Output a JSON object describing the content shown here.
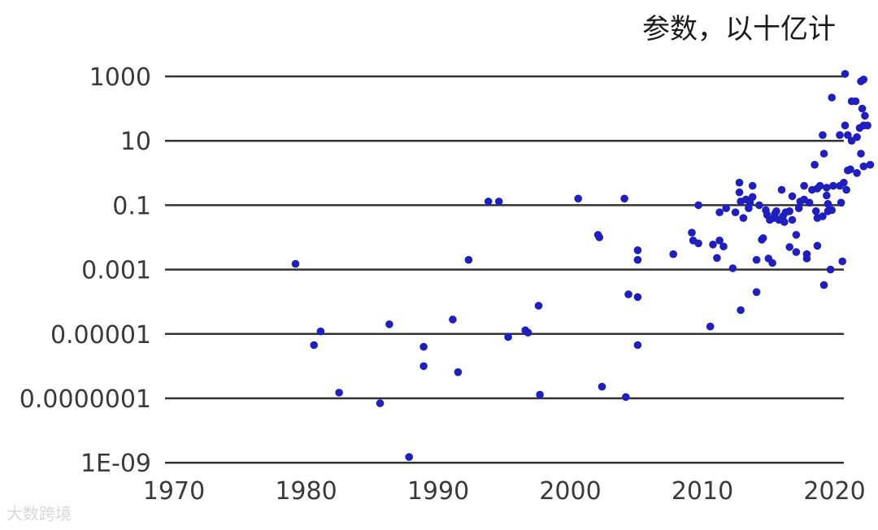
{
  "chart_data": {
    "type": "scatter",
    "title": "参数，以十亿计",
    "yscale": "log",
    "ylim": [
      1e-09,
      1000
    ],
    "xlim": [
      1970,
      2022
    ],
    "y_ticks": [
      1000,
      10,
      0.1,
      0.001,
      1e-05,
      1e-07,
      1e-09
    ],
    "y_tick_labels": [
      "1000",
      "10",
      "0.1",
      "0.001",
      "0.00001",
      "0.0000001",
      "1E-09"
    ],
    "x_ticks": [
      1970,
      1980,
      1990,
      2000,
      2010,
      2020
    ],
    "x_tick_labels": [
      "1970",
      "1980",
      "1990",
      "2000",
      "2010",
      "2020"
    ],
    "grid": "horizontal",
    "point_color": "#1f1fbf",
    "points": [
      [
        1979.2,
        0.0015
      ],
      [
        1980.6,
        4.5e-06
      ],
      [
        1981.1,
        1.2e-05
      ],
      [
        1982.5,
        1.5e-07
      ],
      [
        1985.6,
        7e-08
      ],
      [
        1986.3,
        2e-05
      ],
      [
        1987.8,
        1.5e-09
      ],
      [
        1988.9,
        1e-06
      ],
      [
        1988.9,
        4e-06
      ],
      [
        1991.1,
        2.8e-05
      ],
      [
        1991.5,
        6.5e-07
      ],
      [
        1992.3,
        0.002
      ],
      [
        1993.8,
        0.13
      ],
      [
        1994.6,
        0.13
      ],
      [
        1995.3,
        8e-06
      ],
      [
        1996.6,
        1.3e-05
      ],
      [
        1996.8,
        1.1e-05
      ],
      [
        1997.6,
        7.5e-05
      ],
      [
        1997.7,
        1.3e-07
      ],
      [
        2000.6,
        0.16
      ],
      [
        2002.1,
        0.012
      ],
      [
        2002.2,
        0.01
      ],
      [
        2002.4,
        2.3e-07
      ],
      [
        2004.1,
        0.16
      ],
      [
        2004.2,
        1.1e-07
      ],
      [
        2004.4,
        0.00017
      ],
      [
        2005.1,
        0.00014
      ],
      [
        2005.1,
        4.5e-06
      ],
      [
        2005.1,
        0.004
      ],
      [
        2005.1,
        0.002
      ],
      [
        2007.8,
        0.003
      ],
      [
        2009.2,
        0.014
      ],
      [
        2009.3,
        0.008
      ],
      [
        2009.7,
        0.1
      ],
      [
        2009.7,
        0.0065
      ],
      [
        2010.6,
        1.7e-05
      ],
      [
        2010.8,
        0.006
      ],
      [
        2011.1,
        0.0023
      ],
      [
        2011.3,
        0.008
      ],
      [
        2011.3,
        0.06
      ],
      [
        2011.6,
        0.0052
      ],
      [
        2011.8,
        0.08
      ],
      [
        2012.3,
        0.0011
      ],
      [
        2012.5,
        0.06
      ],
      [
        2012.8,
        0.5
      ],
      [
        2012.8,
        0.25
      ],
      [
        2012.9,
        5.5e-05
      ],
      [
        2012.9,
        0.13
      ],
      [
        2013.1,
        0.04
      ],
      [
        2013.3,
        0.15
      ],
      [
        2013.5,
        0.08
      ],
      [
        2013.6,
        0.12
      ],
      [
        2013.8,
        0.18
      ],
      [
        2013.8,
        0.4
      ],
      [
        2014.1,
        0.0002
      ],
      [
        2014.1,
        0.002
      ],
      [
        2014.3,
        0.1
      ],
      [
        2014.5,
        0.0085
      ],
      [
        2014.6,
        0.0095
      ],
      [
        2014.8,
        0.07
      ],
      [
        2014.9,
        0.05
      ],
      [
        2015.0,
        0.0022
      ],
      [
        2015.1,
        0.035
      ],
      [
        2015.3,
        0.0016
      ],
      [
        2015.4,
        0.04
      ],
      [
        2015.5,
        0.055
      ],
      [
        2015.6,
        0.065
      ],
      [
        2015.8,
        0.035
      ],
      [
        2016.0,
        0.3
      ],
      [
        2016.1,
        0.045
      ],
      [
        2016.2,
        0.03
      ],
      [
        2016.3,
        0.06
      ],
      [
        2016.6,
        0.005
      ],
      [
        2016.6,
        0.065
      ],
      [
        2016.8,
        0.035
      ],
      [
        2016.8,
        0.19
      ],
      [
        2017.1,
        0.012
      ],
      [
        2017.1,
        0.0035
      ],
      [
        2017.3,
        0.08
      ],
      [
        2017.4,
        0.13
      ],
      [
        2017.7,
        0.15
      ],
      [
        2017.7,
        0.4
      ],
      [
        2017.9,
        0.003
      ],
      [
        2017.9,
        0.0022
      ],
      [
        2018.1,
        0.12
      ],
      [
        2018.3,
        0.3
      ],
      [
        2018.5,
        1.8
      ],
      [
        2018.6,
        0.065
      ],
      [
        2018.7,
        0.04
      ],
      [
        2018.7,
        0.0055
      ],
      [
        2018.7,
        0.33
      ],
      [
        2018.9,
        0.4
      ],
      [
        2019.1,
        15
      ],
      [
        2019.1,
        0.045
      ],
      [
        2019.2,
        4
      ],
      [
        2019.2,
        0.00033
      ],
      [
        2019.4,
        0.2
      ],
      [
        2019.4,
        0.35
      ],
      [
        2019.5,
        0.065
      ],
      [
        2019.5,
        0.11
      ],
      [
        2019.7,
        0.001
      ],
      [
        2019.8,
        0.07
      ],
      [
        2019.8,
        220
      ],
      [
        2019.9,
        0.4
      ],
      [
        2020.4,
        0.4
      ],
      [
        2020.4,
        15
      ],
      [
        2020.5,
        0.12
      ],
      [
        2020.6,
        0.0018
      ],
      [
        2020.7,
        0.5
      ],
      [
        2020.8,
        1200
      ],
      [
        2020.8,
        30
      ],
      [
        2020.9,
        0.3
      ],
      [
        2021.0,
        15
      ],
      [
        2021.0,
        1.2
      ],
      [
        2021.2,
        1.3
      ],
      [
        2021.3,
        170
      ],
      [
        2021.3,
        10
      ],
      [
        2021.6,
        170
      ],
      [
        2021.7,
        13
      ],
      [
        2021.7,
        1
      ],
      [
        2021.9,
        25
      ],
      [
        2022.0,
        700
      ],
      [
        2022.0,
        4
      ],
      [
        2022.1,
        100
      ],
      [
        2022.2,
        30
      ],
      [
        2022.2,
        1.6
      ],
      [
        2022.2,
        800
      ],
      [
        2022.3,
        60
      ],
      [
        2022.5,
        30
      ],
      [
        2022.7,
        1.8
      ]
    ]
  },
  "watermark": "大数跨境"
}
